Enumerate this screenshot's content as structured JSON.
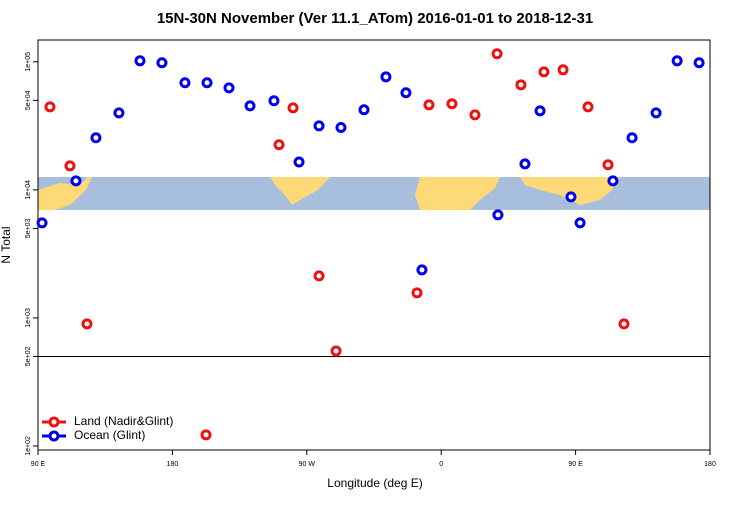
{
  "chart_data": {
    "type": "scatter",
    "title": "15N-30N November (Ver 11.1_ATom)   2016-01-01 to 2018-12-31",
    "x_label": "Longitude (deg E)",
    "y_label": "N Total",
    "xlim": [
      90,
      540
    ],
    "xticks": [
      {
        "value": 90,
        "label": "90 E"
      },
      {
        "value": 180,
        "label": "180"
      },
      {
        "value": 270,
        "label": "90 W"
      },
      {
        "value": 360,
        "label": "0"
      },
      {
        "value": 450,
        "label": "90 E"
      },
      {
        "value": 540,
        "label": "180"
      }
    ],
    "ylim": [
      93,
      148000
    ],
    "log_y": true,
    "yticks": [
      {
        "value": 100,
        "label": "1e+02"
      },
      {
        "value": 500,
        "label": "5e+02"
      },
      {
        "value": 1000,
        "label": "1e+03"
      },
      {
        "value": 5000,
        "label": "5e+03"
      },
      {
        "value": 10000,
        "label": "1e+04"
      },
      {
        "value": 50000,
        "label": "5e+04"
      },
      {
        "value": 100000,
        "label": "1e+05"
      }
    ],
    "reference_line": 500,
    "legend": "bottom-left",
    "series": [
      {
        "name": "Land (Nadir&Glint)",
        "color": "#ee1111",
        "x": [
          98,
          111.4,
          122.8,
          202.5,
          251.4,
          260.8,
          278.2,
          289.6,
          343.8,
          351.8,
          367.2,
          382.6,
          397.4,
          413.4,
          428.8,
          441.6,
          458.3,
          471.7,
          482.4
        ],
        "values": [
          44500,
          15400,
          898,
          122,
          22500,
          43700,
          2130,
          552,
          1570,
          46100,
          47000,
          38500,
          115500,
          66100,
          83500,
          86600,
          44500,
          15700,
          898
        ]
      },
      {
        "name": "Ocean (Glint)",
        "color": "#0000ee",
        "x": [
          92.7,
          115.4,
          128.8,
          144.2,
          158.3,
          173,
          188.4,
          203.2,
          217.9,
          232,
          248,
          264.8,
          278.2,
          292.9,
          308.3,
          323,
          336.4,
          347.1,
          398,
          416.1,
          426.2,
          446.9,
          453,
          475,
          487.8,
          503.9,
          518,
          532.7
        ],
        "values": [
          5520,
          11750,
          25500,
          39900,
          101800,
          98300,
          68600,
          68600,
          62600,
          45300,
          49600,
          16500,
          31600,
          30700,
          42200,
          76300,
          57300,
          2370,
          6380,
          15960,
          41400,
          8810,
          5520,
          11750,
          25500,
          39900,
          101800,
          98300
        ]
      }
    ]
  }
}
